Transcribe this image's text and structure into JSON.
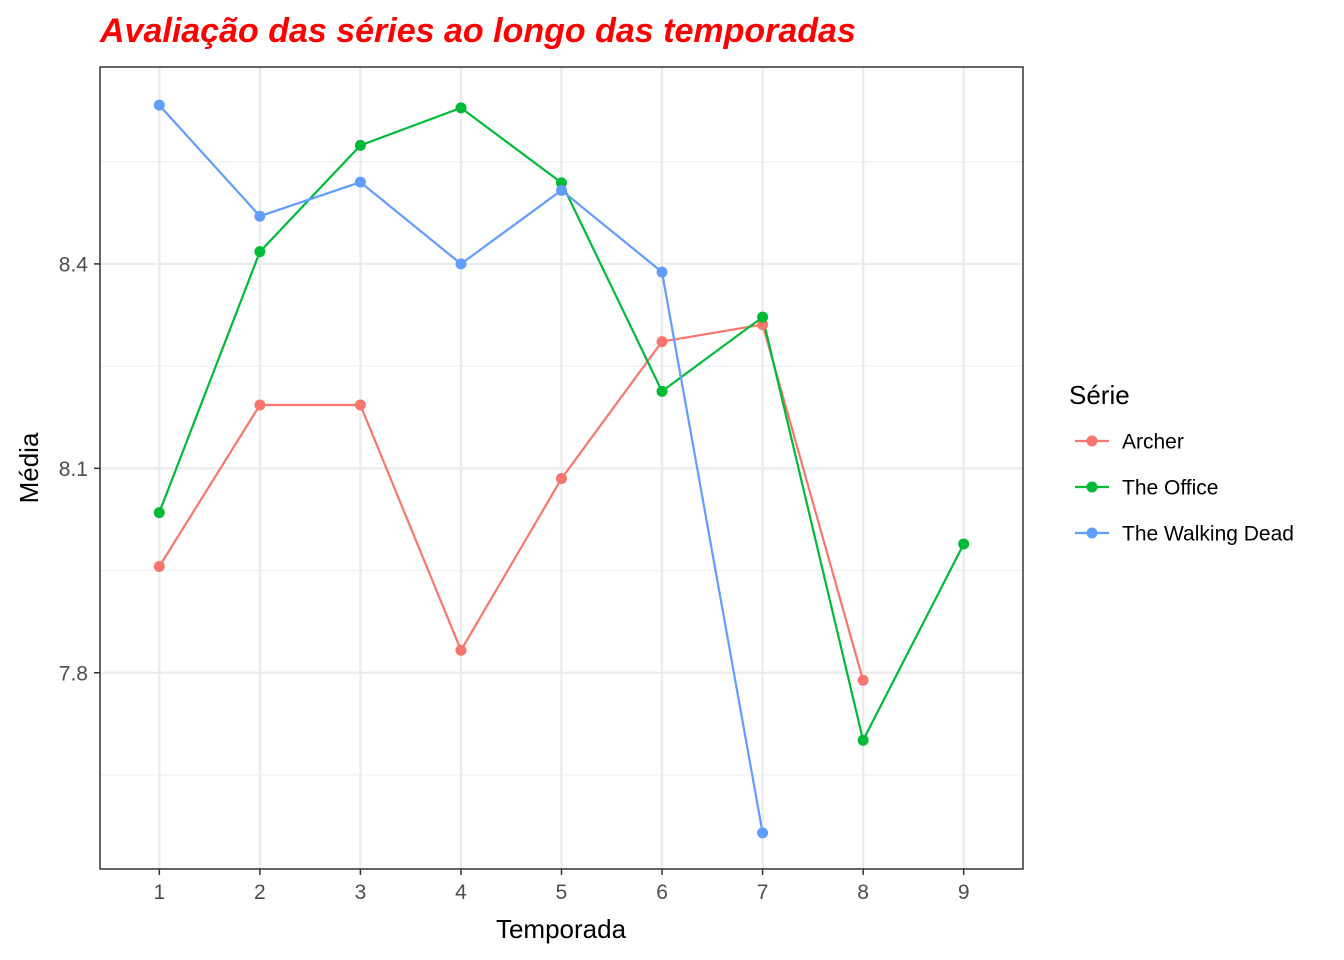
{
  "chart_data": {
    "type": "line",
    "title": "Avaliação das séries ao longo das temporadas",
    "title_color": "#ff0000",
    "xlabel": "Temporada",
    "ylabel": "Média",
    "x_ticks": [
      1,
      2,
      3,
      4,
      5,
      6,
      7,
      8,
      9
    ],
    "x_tick_labels": [
      "1",
      "2",
      "3",
      "4",
      "5",
      "6",
      "7",
      "8",
      "9"
    ],
    "y_ticks": [
      7.8,
      8.1,
      8.4
    ],
    "y_tick_labels": [
      "7.8",
      "8.1",
      "8.4"
    ],
    "xlim": [
      0.41,
      9.59
    ],
    "ylim": [
      7.512,
      8.689
    ],
    "grid": true,
    "theme": "bw",
    "legend": {
      "title": "Série",
      "position": "right"
    },
    "series": [
      {
        "name": "Archer",
        "color": "#f8766d",
        "x": [
          1,
          2,
          3,
          4,
          5,
          6,
          7,
          8
        ],
        "values": [
          7.956,
          8.193,
          8.193,
          7.833,
          8.085,
          8.286,
          8.311,
          7.789
        ]
      },
      {
        "name": "The Office",
        "color": "#00ba38",
        "x": [
          1,
          2,
          3,
          4,
          5,
          6,
          7,
          8,
          9
        ],
        "values": [
          8.035,
          8.418,
          8.574,
          8.629,
          8.519,
          8.213,
          8.322,
          7.701,
          7.989
        ]
      },
      {
        "name": "The Walking Dead",
        "color": "#619cff",
        "x": [
          1,
          2,
          3,
          4,
          5,
          6,
          7
        ],
        "values": [
          8.633,
          8.47,
          8.52,
          8.4,
          8.508,
          8.388,
          7.565
        ]
      }
    ]
  }
}
